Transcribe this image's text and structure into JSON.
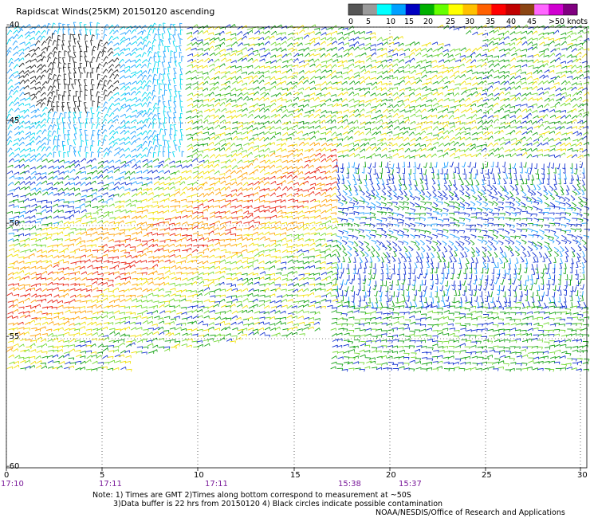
{
  "title": "Rapidscat Winds(25KM) 20150120 ascending",
  "legend": {
    "ticks": [
      "0",
      "5",
      "10",
      "15",
      "20",
      "25",
      "30",
      "35",
      "40",
      "45",
      ">50 knots"
    ],
    "colors": [
      "#555555",
      "#9a9a9a",
      "#00ffff",
      "#00a0ff",
      "#0000c0",
      "#00b000",
      "#66ff00",
      "#ffff00",
      "#ffc000",
      "#ff6000",
      "#ff0000",
      "#c00000",
      "#8b4513",
      "#ff66ff",
      "#d000d0",
      "#800080"
    ]
  },
  "axes": {
    "lat_labels": [
      "-40",
      "-45",
      "-50",
      "-55",
      "-60"
    ],
    "lon_labels": [
      "0",
      "5",
      "10",
      "15",
      "20",
      "25",
      "30"
    ],
    "time_labels": [
      "17:10",
      "17:11",
      "17:11",
      "15:38",
      "15:37"
    ]
  },
  "notes": {
    "line1": "Note: 1) Times are GMT 2)Times along bottom correspond to measurement at ~50S",
    "line2": "3)Data buffer is 22 hrs from 20150120 4) Black circles indicate possible contamination",
    "credit": "NOAA/NESDIS/Office of Research and Applications"
  },
  "wind_colors": {
    "black": "#222222",
    "cyan": "#00d8f0",
    "lightblue": "#20a0ff",
    "blue": "#1030d0",
    "green": "#10a010",
    "lightgreen": "#70d830",
    "yellow": "#f0e000",
    "orange": "#ffa000",
    "red": "#e82010"
  }
}
